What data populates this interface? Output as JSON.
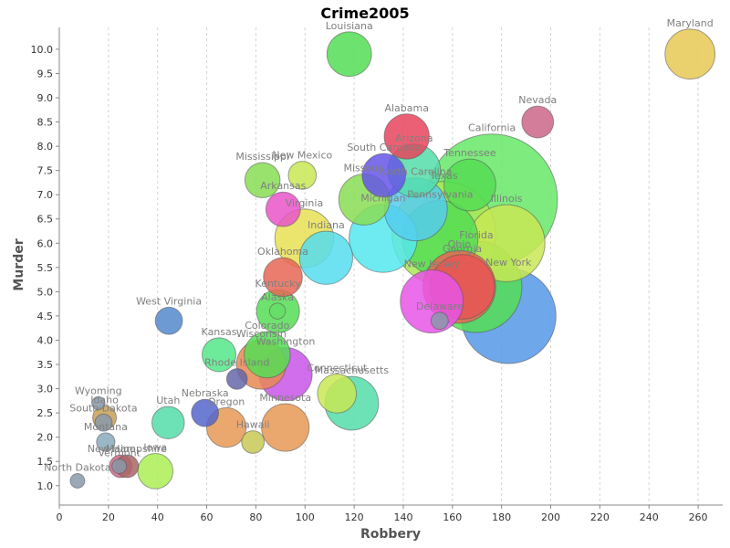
{
  "chart_data": {
    "type": "scatter",
    "title": "Crime2005",
    "xlabel": "Robbery",
    "ylabel": "Murder",
    "xlim": [
      0,
      270
    ],
    "ylim": [
      0.6,
      10.45
    ],
    "xticks": [
      0,
      20,
      40,
      60,
      80,
      100,
      120,
      140,
      160,
      180,
      200,
      220,
      240,
      260
    ],
    "yticks": [
      1.0,
      1.5,
      2.0,
      2.5,
      3.0,
      3.5,
      4.0,
      4.5,
      5.0,
      5.5,
      6.0,
      6.5,
      7.0,
      7.5,
      8.0,
      8.5,
      9.0,
      9.5,
      10.0
    ],
    "grid": {
      "x": true,
      "y": false
    },
    "bubble_size_encoding": "population",
    "points": [
      {
        "name": "Alabama",
        "x": 141.4,
        "y": 8.2,
        "population": 4.6,
        "color": "#e8445c"
      },
      {
        "name": "Alaska",
        "x": 88.8,
        "y": 4.6,
        "population": 0.7,
        "color": "#66dd66"
      },
      {
        "name": "Arizona",
        "x": 144.4,
        "y": 7.5,
        "population": 6.2,
        "color": "#55ddaa"
      },
      {
        "name": "Arkansas",
        "x": 91.1,
        "y": 6.7,
        "population": 2.8,
        "color": "#e855c8"
      },
      {
        "name": "California",
        "x": 176.1,
        "y": 6.9,
        "population": 36.1,
        "color": "#66e866"
      },
      {
        "name": "Colorado",
        "x": 84.6,
        "y": 3.7,
        "population": 4.8,
        "color": "#55dd55"
      },
      {
        "name": "Connecticut",
        "x": 113.0,
        "y": 2.9,
        "population": 3.5,
        "color": "#c8e855"
      },
      {
        "name": "Delaware",
        "x": 154.8,
        "y": 4.4,
        "population": 0.8,
        "color": "#8899aa"
      },
      {
        "name": "Florida",
        "x": 169.7,
        "y": 5.1,
        "population": 17.8,
        "color": "#55dd55"
      },
      {
        "name": "Georgia",
        "x": 164.0,
        "y": 5.1,
        "population": 9.1,
        "color": "#e85555"
      },
      {
        "name": "Hawaii",
        "x": 78.8,
        "y": 1.9,
        "population": 1.3,
        "color": "#c8c855"
      },
      {
        "name": "Idaho",
        "x": 18.4,
        "y": 2.4,
        "population": 1.4,
        "color": "#c8a055"
      },
      {
        "name": "Illinois",
        "x": 182.0,
        "y": 6.0,
        "population": 12.8,
        "color": "#c8e855"
      },
      {
        "name": "Indiana",
        "x": 108.6,
        "y": 5.7,
        "population": 6.3,
        "color": "#55ddee"
      },
      {
        "name": "Iowa",
        "x": 39.1,
        "y": 1.3,
        "population": 2.9,
        "color": "#aaee55"
      },
      {
        "name": "Kansas",
        "x": 65.0,
        "y": 3.7,
        "population": 2.7,
        "color": "#55e888"
      },
      {
        "name": "Kentucky",
        "x": 89.0,
        "y": 4.6,
        "population": 4.2,
        "color": "#55dd55"
      },
      {
        "name": "Louisiana",
        "x": 118.0,
        "y": 9.9,
        "population": 4.5,
        "color": "#55dd55"
      },
      {
        "name": "Maine",
        "x": 25.0,
        "y": 1.4,
        "population": 1.3,
        "color": "#cc6688"
      },
      {
        "name": "Maryland",
        "x": 256.7,
        "y": 9.9,
        "population": 5.6,
        "color": "#e8c855"
      },
      {
        "name": "Massachusetts",
        "x": 119.0,
        "y": 2.7,
        "population": 6.4,
        "color": "#55ddaa"
      },
      {
        "name": "Michigan",
        "x": 131.8,
        "y": 6.1,
        "population": 10.1,
        "color": "#55e8ee"
      },
      {
        "name": "Minnesota",
        "x": 92.0,
        "y": 2.2,
        "population": 5.1,
        "color": "#e89955"
      },
      {
        "name": "Mississippi",
        "x": 82.7,
        "y": 7.3,
        "population": 2.9,
        "color": "#88dd55"
      },
      {
        "name": "Missouri",
        "x": 124.1,
        "y": 6.9,
        "population": 5.8,
        "color": "#88dd55"
      },
      {
        "name": "Montana",
        "x": 18.9,
        "y": 1.9,
        "population": 0.9,
        "color": "#88aabb"
      },
      {
        "name": "Nebraska",
        "x": 59.3,
        "y": 2.5,
        "population": 1.8,
        "color": "#5566cc"
      },
      {
        "name": "Nevada",
        "x": 194.7,
        "y": 8.5,
        "population": 2.4,
        "color": "#cc6688"
      },
      {
        "name": "New Hampshire",
        "x": 27.6,
        "y": 1.4,
        "population": 1.3,
        "color": "#aa6666"
      },
      {
        "name": "New Jersey",
        "x": 151.6,
        "y": 4.8,
        "population": 8.7,
        "color": "#e855e8"
      },
      {
        "name": "New Mexico",
        "x": 98.9,
        "y": 7.4,
        "population": 1.9,
        "color": "#c8e855"
      },
      {
        "name": "New York",
        "x": 182.8,
        "y": 4.5,
        "population": 19.3,
        "color": "#5599e8"
      },
      {
        "name": "North Carolina",
        "x": 145.1,
        "y": 6.7,
        "population": 8.7,
        "color": "#55ccee"
      },
      {
        "name": "North Dakota",
        "x": 7.4,
        "y": 1.1,
        "population": 0.6,
        "color": "#8899aa"
      },
      {
        "name": "Ohio",
        "x": 162.8,
        "y": 5.1,
        "population": 11.5,
        "color": "#e86655"
      },
      {
        "name": "Oklahoma",
        "x": 91.0,
        "y": 5.3,
        "population": 3.5,
        "color": "#e86655"
      },
      {
        "name": "Oregon",
        "x": 68.0,
        "y": 2.2,
        "population": 3.6,
        "color": "#e89955"
      },
      {
        "name": "Pennsylvania",
        "x": 155.0,
        "y": 6.1,
        "population": 12.4,
        "color": "#55dd55"
      },
      {
        "name": "Rhode Island",
        "x": 72.3,
        "y": 3.2,
        "population": 1.1,
        "color": "#6666aa"
      },
      {
        "name": "South Carolina",
        "x": 132.1,
        "y": 7.4,
        "population": 4.3,
        "color": "#6655e8"
      },
      {
        "name": "South Dakota",
        "x": 18.0,
        "y": 2.3,
        "population": 0.8,
        "color": "#8899aa"
      },
      {
        "name": "Tennessee",
        "x": 167.1,
        "y": 7.2,
        "population": 6.0,
        "color": "#55dd55"
      },
      {
        "name": "Texas",
        "x": 156.5,
        "y": 6.2,
        "population": 22.9,
        "color": "#aae855"
      },
      {
        "name": "Utah",
        "x": 44.3,
        "y": 2.3,
        "population": 2.5,
        "color": "#55ddaa"
      },
      {
        "name": "Vermont",
        "x": 24.4,
        "y": 1.4,
        "population": 0.6,
        "color": "#8899aa"
      },
      {
        "name": "Virginia",
        "x": 99.7,
        "y": 6.1,
        "population": 7.6,
        "color": "#e8e055"
      },
      {
        "name": "Washington",
        "x": 92.1,
        "y": 3.3,
        "population": 6.3,
        "color": "#c855e8"
      },
      {
        "name": "West Virginia",
        "x": 44.6,
        "y": 4.4,
        "population": 1.8,
        "color": "#5588cc"
      },
      {
        "name": "Wisconsin",
        "x": 82.2,
        "y": 3.5,
        "population": 5.5,
        "color": "#e88855"
      },
      {
        "name": "Wyoming",
        "x": 15.9,
        "y": 2.7,
        "population": 0.5,
        "color": "#8899aa"
      }
    ]
  }
}
